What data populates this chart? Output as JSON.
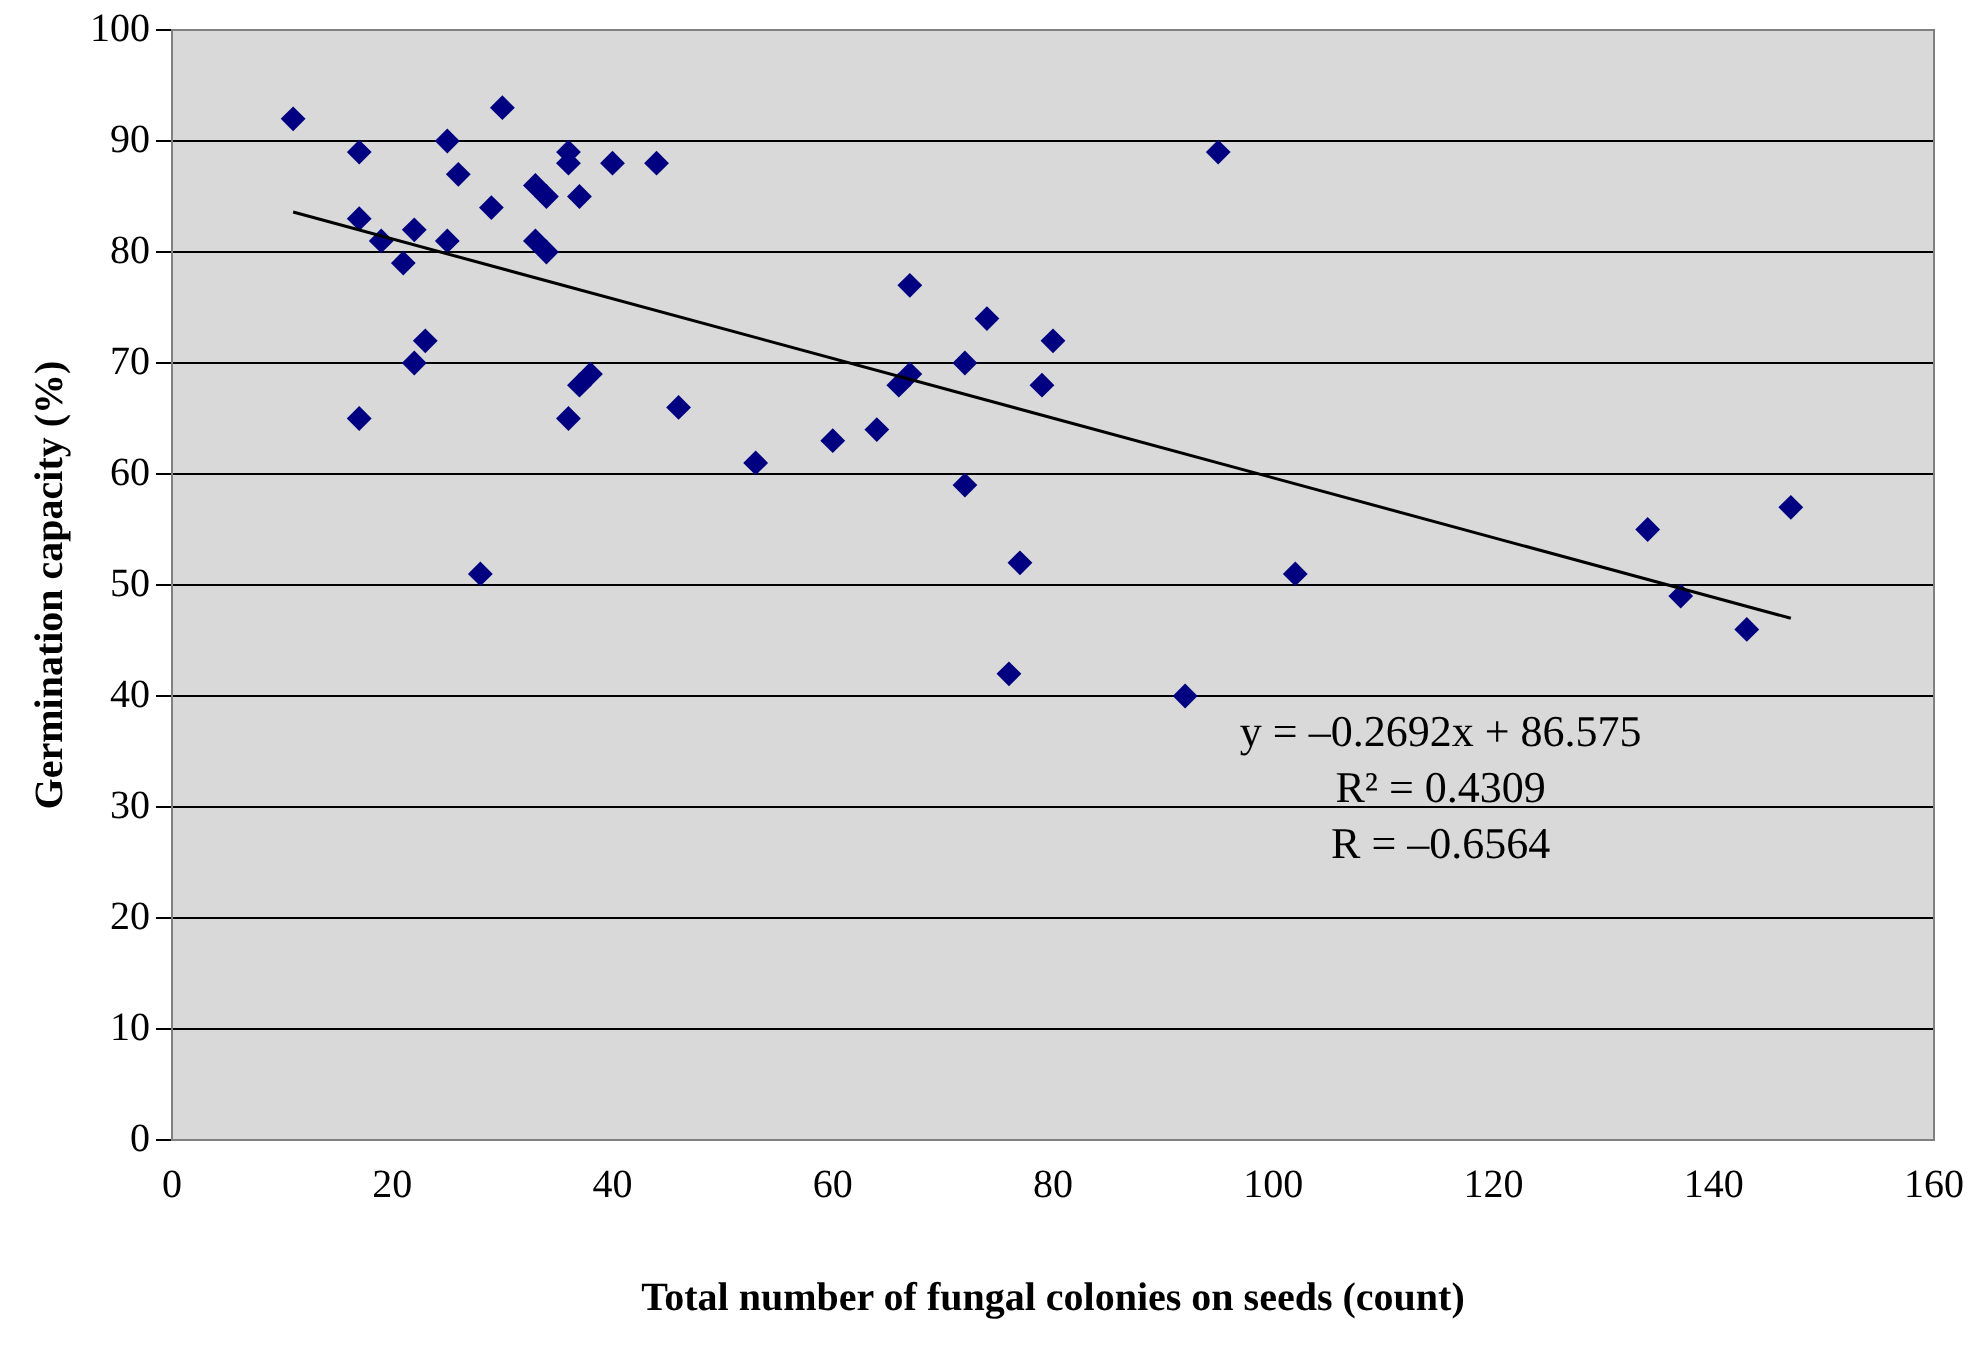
{
  "chart_data": {
    "type": "scatter",
    "xlabel": "Total number of fungal colonies on seeds (count)",
    "ylabel": "Germination capacity (%)",
    "xlim": [
      0,
      160
    ],
    "xticks": [
      0,
      20,
      40,
      60,
      80,
      100,
      120,
      140,
      160
    ],
    "ylim": [
      0,
      100
    ],
    "yticks": [
      0,
      10,
      20,
      30,
      40,
      50,
      60,
      70,
      80,
      90,
      100
    ],
    "grid": "y",
    "legend": false,
    "marker": "diamond",
    "annotations": [
      "y = –0.2692x + 86.575",
      "R² = 0.4309",
      "R = –0.6564"
    ],
    "series": [
      {
        "color": "#000080",
        "x": [
          11,
          17,
          17,
          17,
          19,
          21,
          22,
          22,
          23,
          25,
          25,
          26,
          28,
          29,
          30,
          33,
          33,
          34,
          34,
          36,
          36,
          36,
          37,
          37,
          38,
          40,
          44,
          46,
          53,
          60,
          64,
          66,
          67,
          67,
          72,
          72,
          74,
          76,
          77,
          79,
          80,
          92,
          95,
          102,
          134,
          137,
          143,
          147
        ],
        "values": [
          92,
          89,
          83,
          65,
          81,
          79,
          82,
          70,
          72,
          90,
          81,
          87,
          51,
          84,
          93,
          86,
          81,
          85,
          80,
          89,
          88,
          65,
          85,
          68,
          69,
          88,
          88,
          66,
          61,
          63,
          64,
          68,
          69,
          77,
          70,
          59,
          74,
          42,
          52,
          68,
          72,
          40,
          89,
          51,
          55,
          49,
          46,
          57
        ]
      },
      {
        "type": "line",
        "color": "#000000",
        "marker": "none",
        "x": [
          11,
          147
        ],
        "values": [
          83.6,
          47.0
        ]
      }
    ]
  }
}
